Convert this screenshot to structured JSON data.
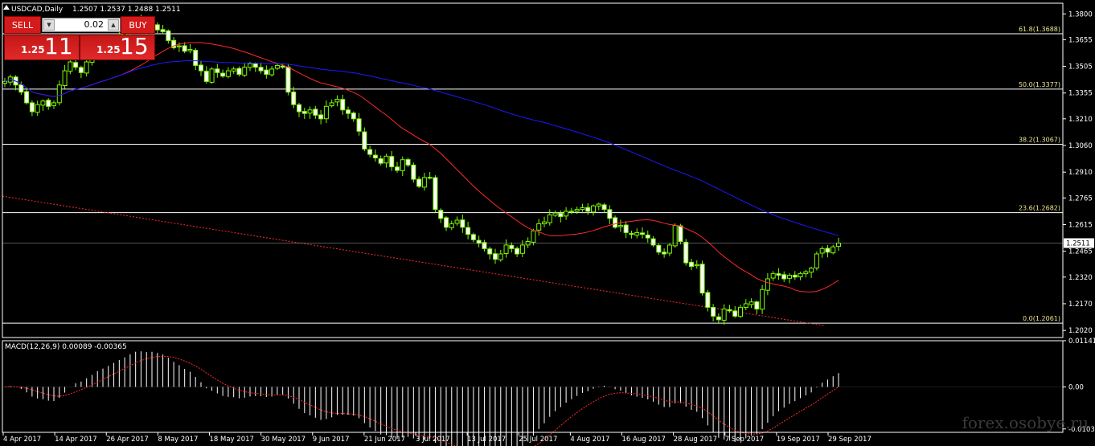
{
  "header": {
    "symbol_label": "USDCAD,Daily",
    "ohlc": "1.2507 1.2537 1.2488 1.2511"
  },
  "trade_panel": {
    "sell_label": "SELL",
    "buy_label": "BUY",
    "lot_value": "0.02",
    "sell_small": "1.25",
    "sell_big": "11",
    "buy_small": "1.25",
    "buy_big": "15"
  },
  "watermark": "forex.osobye.ru",
  "colors": {
    "background": "#000000",
    "candle": "#7CFC00",
    "ma_fast": "#ff2a2a",
    "ma_slow": "#1a1aff",
    "fib_line": "#ffffff",
    "fib_label": "#f0e68c",
    "trend_line": "#ff2a2a",
    "macd_signal": "#ff2a2a"
  },
  "chart_data": [
    {
      "type": "candlestick",
      "title": "USDCAD,Daily",
      "ylim": [
        1.198,
        1.386
      ],
      "y_ticks": [
        "1.3800",
        "1.3655",
        "1.3505",
        "1.3355",
        "1.3210",
        "1.3060",
        "1.2910",
        "1.2765",
        "1.2615",
        "1.2465",
        "1.2320",
        "1.2170",
        "1.2020"
      ],
      "x_ticks": [
        "4 Apr 2017",
        "14 Apr 2017",
        "26 Apr 2017",
        "8 May 2017",
        "18 May 2017",
        "30 May 2017",
        "9 Jun 2017",
        "21 Jun 2017",
        "3 Jul 2017",
        "13 Jul 2017",
        "25 Jul 2017",
        "4 Aug 2017",
        "16 Aug 2017",
        "28 Aug 2017",
        "7 Sep 2017",
        "19 Sep 2017",
        "29 Sep 2017"
      ],
      "current_price": "1.2511",
      "fibonacci": [
        {
          "label": "61.8(1.3688)",
          "value": 1.3688
        },
        {
          "label": "50.0(1.3377)",
          "value": 1.3377
        },
        {
          "label": "38.2(1.3067)",
          "value": 1.3067
        },
        {
          "label": "23.6(1.2682)",
          "value": 1.2682
        },
        {
          "label": "0.0(1.2061)",
          "value": 1.2061
        }
      ],
      "closes": [
        1.342,
        1.3445,
        1.34,
        1.336,
        1.33,
        1.325,
        1.329,
        1.331,
        1.328,
        1.33,
        1.34,
        1.348,
        1.353,
        1.35,
        1.347,
        1.353,
        1.356,
        1.36,
        1.359,
        1.362,
        1.365,
        1.368,
        1.37,
        1.374,
        1.376,
        1.372,
        1.37,
        1.374,
        1.371,
        1.37,
        1.365,
        1.361,
        1.362,
        1.359,
        1.36,
        1.351,
        1.348,
        1.342,
        1.349,
        1.347,
        1.345,
        1.348,
        1.349,
        1.346,
        1.35,
        1.352,
        1.35,
        1.348,
        1.346,
        1.349,
        1.351,
        1.35,
        1.336,
        1.329,
        1.325,
        1.324,
        1.326,
        1.323,
        1.321,
        1.328,
        1.33,
        1.332,
        1.326,
        1.324,
        1.321,
        1.314,
        1.304,
        1.301,
        1.299,
        1.296,
        1.3,
        1.294,
        1.292,
        1.298,
        1.295,
        1.287,
        1.283,
        1.288,
        1.288,
        1.27,
        1.265,
        1.26,
        1.262,
        1.264,
        1.26,
        1.256,
        1.253,
        1.251,
        1.248,
        1.245,
        1.242,
        1.245,
        1.25,
        1.248,
        1.245,
        1.25,
        1.252,
        1.258,
        1.262,
        1.263,
        1.267,
        1.268,
        1.266,
        1.269,
        1.269,
        1.27,
        1.271,
        1.269,
        1.272,
        1.273,
        1.27,
        1.265,
        1.26,
        1.261,
        1.257,
        1.256,
        1.257,
        1.256,
        1.254,
        1.25,
        1.246,
        1.245,
        1.25,
        1.261,
        1.252,
        1.24,
        1.238,
        1.239,
        1.223,
        1.215,
        1.21,
        1.208,
        1.214,
        1.213,
        1.21,
        1.215,
        1.217,
        1.218,
        1.214,
        1.225,
        1.231,
        1.234,
        1.233,
        1.231,
        1.233,
        1.232,
        1.234,
        1.235,
        1.237,
        1.245,
        1.248,
        1.246,
        1.249,
        1.2511
      ],
      "ma_fast_label": "MA (red)",
      "ma_slow_label": "MA (blue)"
    },
    {
      "type": "histogram",
      "title": "MACD(12,26,9) 0.00089 -0.00365",
      "ylim": [
        -0.0112,
        0.0114
      ],
      "y_ticks": [
        "0.01141",
        "0.00",
        "-0.01036"
      ]
    }
  ]
}
